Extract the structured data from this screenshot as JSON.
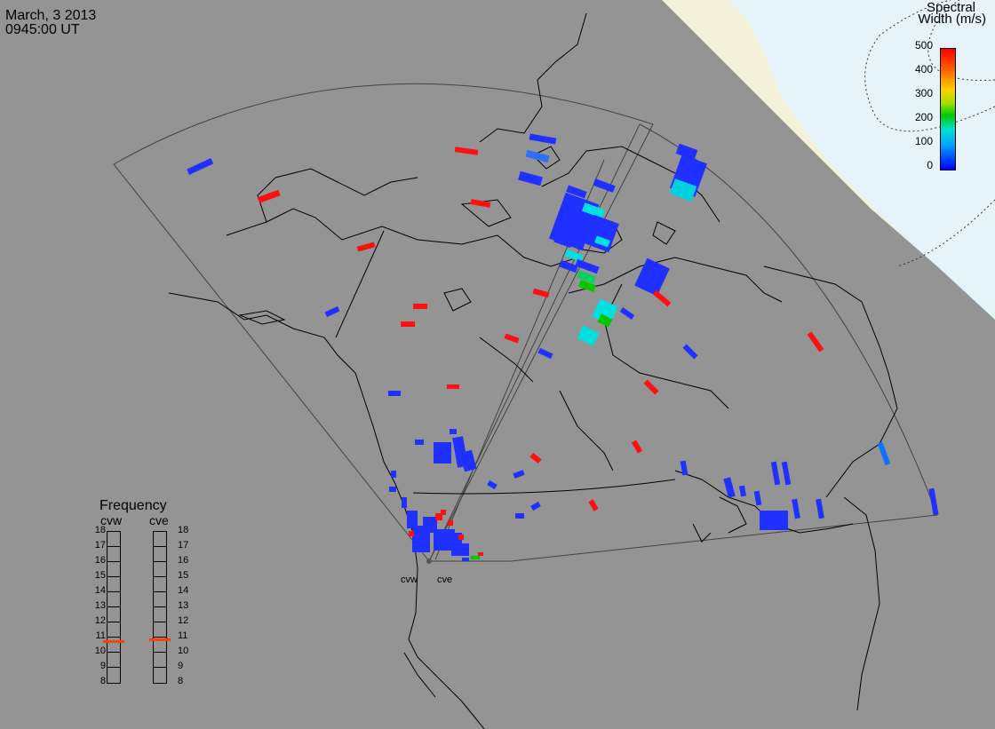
{
  "header": {
    "date": "March, 3 2013",
    "time": "0945:00 UT"
  },
  "colorbar": {
    "title_line1": "Spectral",
    "title_line2": "Width (m/s)",
    "ticks": [
      "500",
      "400",
      "300",
      "200",
      "100",
      "0"
    ]
  },
  "frequency": {
    "title": "Frequency",
    "radars": [
      "cvw",
      "cve"
    ],
    "scale": [
      "18",
      "17",
      "16",
      "15",
      "14",
      "13",
      "12",
      "11",
      "10",
      "9",
      "8"
    ],
    "selected_mhz": {
      "cvw": 10.7,
      "cve": 10.8
    }
  },
  "radar_labels": {
    "west": "cvw",
    "east": "cve"
  },
  "colors": {
    "background": "#949494",
    "land_line": "#000000",
    "daylight": "#f5f5dc",
    "polar": "#e8f4ff",
    "marker": "#ff4000"
  }
}
